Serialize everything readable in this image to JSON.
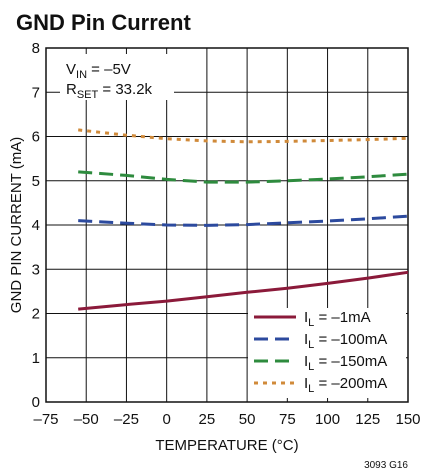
{
  "chart_data": {
    "type": "line",
    "title": "GND Pin Current",
    "xlabel": "TEMPERATURE (°C)",
    "ylabel": "GND PIN CURRENT (mA)",
    "xlim": [
      -75,
      150
    ],
    "ylim": [
      0,
      8
    ],
    "x_ticks": [
      "–75",
      "–50",
      "–25",
      "0",
      "25",
      "50",
      "75",
      "100",
      "125",
      "150"
    ],
    "y_ticks": [
      "0",
      "1",
      "2",
      "3",
      "4",
      "5",
      "6",
      "7",
      "8"
    ],
    "grid": true,
    "conditions": {
      "vin_main": "V",
      "vin_sub": "IN",
      "vin_value": " = –5V",
      "rset_main": "R",
      "rset_sub": "SET",
      "rset_value": " = 33.2k"
    },
    "legend_position": "bottom-right",
    "series": [
      {
        "name_main": "I",
        "name_sub": "L",
        "name_value": " = –1mA",
        "color": "#8b1a3a",
        "style": "solid",
        "x": [
          -55,
          -25,
          0,
          25,
          50,
          75,
          100,
          125,
          150
        ],
        "y": [
          2.1,
          2.2,
          2.28,
          2.38,
          2.48,
          2.57,
          2.68,
          2.8,
          2.93
        ]
      },
      {
        "name_main": "I",
        "name_sub": "L",
        "name_value": " = –100mA",
        "color": "#2c4a9e",
        "style": "dash",
        "x": [
          -55,
          -25,
          0,
          25,
          50,
          75,
          100,
          125,
          150
        ],
        "y": [
          4.1,
          4.04,
          4.0,
          3.99,
          4.01,
          4.05,
          4.09,
          4.14,
          4.2
        ]
      },
      {
        "name_main": "I",
        "name_sub": "L",
        "name_value": " = –150mA",
        "color": "#2e8b3e",
        "style": "dash",
        "x": [
          -55,
          -25,
          0,
          25,
          50,
          75,
          100,
          125,
          150
        ],
        "y": [
          5.2,
          5.12,
          5.03,
          4.97,
          4.97,
          5.0,
          5.04,
          5.09,
          5.15
        ]
      },
      {
        "name_main": "I",
        "name_sub": "L",
        "name_value": " = –200mA",
        "color": "#d08a3a",
        "style": "dot",
        "x": [
          -55,
          -25,
          0,
          25,
          50,
          75,
          100,
          125,
          150
        ],
        "y": [
          6.15,
          6.03,
          5.95,
          5.9,
          5.88,
          5.89,
          5.91,
          5.93,
          5.96
        ]
      }
    ],
    "figure_code": "3093 G16"
  }
}
